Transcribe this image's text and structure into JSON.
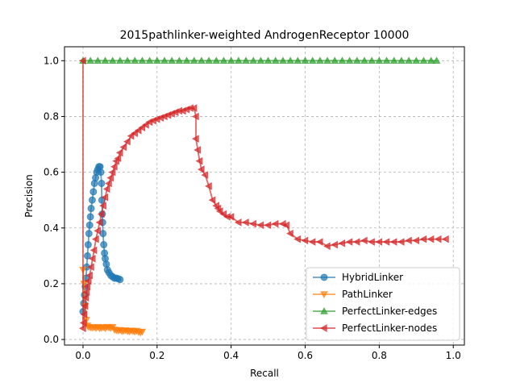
{
  "chart_data": {
    "type": "line",
    "title": "2015pathlinker-weighted AndrogenReceptor 10000",
    "xlabel": "Recall",
    "ylabel": "Precision",
    "xlim": [
      -0.05,
      1.03
    ],
    "ylim": [
      -0.02,
      1.05
    ],
    "xticks": [
      0.0,
      0.2,
      0.4,
      0.6,
      0.8,
      1.0
    ],
    "yticks": [
      0.0,
      0.2,
      0.4,
      0.6,
      0.8,
      1.0
    ],
    "grid": true,
    "legend_position": "lower-right",
    "series": [
      {
        "name": "HybridLinker",
        "color": "#1f77b4",
        "marker": "circle",
        "x": [
          0.0,
          0.002,
          0.004,
          0.006,
          0.008,
          0.01,
          0.012,
          0.014,
          0.016,
          0.018,
          0.02,
          0.022,
          0.025,
          0.028,
          0.031,
          0.034,
          0.037,
          0.04,
          0.043,
          0.046,
          0.048,
          0.05,
          0.051,
          0.052,
          0.053,
          0.054,
          0.056,
          0.058,
          0.06,
          0.063,
          0.066,
          0.07,
          0.075,
          0.08,
          0.085,
          0.09,
          0.095,
          0.1
        ],
        "y": [
          0.1,
          0.13,
          0.16,
          0.19,
          0.22,
          0.26,
          0.3,
          0.34,
          0.38,
          0.41,
          0.44,
          0.47,
          0.5,
          0.53,
          0.56,
          0.58,
          0.6,
          0.61,
          0.62,
          0.62,
          0.6,
          0.56,
          0.5,
          0.45,
          0.42,
          0.38,
          0.34,
          0.31,
          0.29,
          0.27,
          0.25,
          0.24,
          0.23,
          0.225,
          0.22,
          0.22,
          0.218,
          0.215
        ]
      },
      {
        "name": "PathLinker",
        "color": "#ff7f0e",
        "marker": "triangle-down",
        "x": [
          0.0,
          0.003,
          0.006,
          0.009,
          0.012,
          0.015,
          0.02,
          0.025,
          0.03,
          0.035,
          0.04,
          0.045,
          0.05,
          0.055,
          0.06,
          0.065,
          0.07,
          0.075,
          0.08,
          0.085,
          0.09,
          0.095,
          0.1,
          0.105,
          0.11,
          0.115,
          0.12,
          0.125,
          0.13,
          0.135,
          0.14,
          0.145,
          0.15,
          0.155,
          0.16
        ],
        "y": [
          0.25,
          0.2,
          0.12,
          0.07,
          0.05,
          0.045,
          0.043,
          0.042,
          0.044,
          0.041,
          0.045,
          0.04,
          0.042,
          0.044,
          0.04,
          0.045,
          0.043,
          0.041,
          0.045,
          0.035,
          0.033,
          0.032,
          0.034,
          0.03,
          0.031,
          0.033,
          0.03,
          0.029,
          0.032,
          0.03,
          0.028,
          0.031,
          0.027,
          0.025,
          0.028
        ]
      },
      {
        "name": "PerfectLinker-edges",
        "color": "#2ca02c",
        "marker": "triangle-up",
        "x": [
          0.0,
          0.02,
          0.04,
          0.06,
          0.08,
          0.1,
          0.12,
          0.14,
          0.16,
          0.18,
          0.2,
          0.22,
          0.24,
          0.26,
          0.28,
          0.3,
          0.32,
          0.34,
          0.36,
          0.38,
          0.4,
          0.42,
          0.44,
          0.46,
          0.48,
          0.5,
          0.52,
          0.54,
          0.56,
          0.58,
          0.6,
          0.62,
          0.64,
          0.66,
          0.68,
          0.7,
          0.72,
          0.74,
          0.76,
          0.78,
          0.8,
          0.82,
          0.84,
          0.86,
          0.88,
          0.9,
          0.92,
          0.94,
          0.955
        ],
        "y": [
          1.0,
          1.0,
          1.0,
          1.0,
          1.0,
          1.0,
          1.0,
          1.0,
          1.0,
          1.0,
          1.0,
          1.0,
          1.0,
          1.0,
          1.0,
          1.0,
          1.0,
          1.0,
          1.0,
          1.0,
          1.0,
          1.0,
          1.0,
          1.0,
          1.0,
          1.0,
          1.0,
          1.0,
          1.0,
          1.0,
          1.0,
          1.0,
          1.0,
          1.0,
          1.0,
          1.0,
          1.0,
          1.0,
          1.0,
          1.0,
          1.0,
          1.0,
          1.0,
          1.0,
          1.0,
          1.0,
          1.0,
          1.0,
          1.0
        ]
      },
      {
        "name": "PerfectLinker-nodes",
        "color": "#d62728",
        "marker": "triangle-left",
        "x": [
          0.0,
          0.0,
          0.002,
          0.004,
          0.006,
          0.008,
          0.01,
          0.012,
          0.015,
          0.018,
          0.022,
          0.026,
          0.03,
          0.035,
          0.04,
          0.045,
          0.05,
          0.055,
          0.06,
          0.065,
          0.07,
          0.075,
          0.08,
          0.085,
          0.09,
          0.095,
          0.1,
          0.11,
          0.12,
          0.13,
          0.14,
          0.15,
          0.16,
          0.17,
          0.18,
          0.19,
          0.2,
          0.21,
          0.22,
          0.23,
          0.24,
          0.25,
          0.26,
          0.27,
          0.28,
          0.29,
          0.3,
          0.305,
          0.305,
          0.31,
          0.315,
          0.32,
          0.33,
          0.34,
          0.35,
          0.36,
          0.365,
          0.37,
          0.38,
          0.39,
          0.4,
          0.42,
          0.44,
          0.46,
          0.48,
          0.5,
          0.52,
          0.54,
          0.55,
          0.56,
          0.58,
          0.6,
          0.62,
          0.64,
          0.66,
          0.68,
          0.7,
          0.72,
          0.74,
          0.76,
          0.78,
          0.8,
          0.82,
          0.84,
          0.86,
          0.88,
          0.9,
          0.92,
          0.94,
          0.96,
          0.98
        ],
        "y": [
          1.0,
          0.04,
          0.06,
          0.09,
          0.12,
          0.15,
          0.17,
          0.19,
          0.21,
          0.23,
          0.26,
          0.29,
          0.32,
          0.36,
          0.39,
          0.42,
          0.45,
          0.48,
          0.51,
          0.54,
          0.56,
          0.58,
          0.6,
          0.62,
          0.64,
          0.65,
          0.67,
          0.69,
          0.71,
          0.73,
          0.74,
          0.75,
          0.76,
          0.77,
          0.78,
          0.785,
          0.79,
          0.795,
          0.8,
          0.805,
          0.81,
          0.815,
          0.82,
          0.82,
          0.825,
          0.83,
          0.83,
          0.8,
          0.72,
          0.68,
          0.64,
          0.61,
          0.59,
          0.55,
          0.5,
          0.48,
          0.47,
          0.46,
          0.45,
          0.44,
          0.44,
          0.42,
          0.42,
          0.415,
          0.41,
          0.41,
          0.415,
          0.415,
          0.41,
          0.38,
          0.36,
          0.355,
          0.35,
          0.35,
          0.335,
          0.34,
          0.345,
          0.35,
          0.35,
          0.355,
          0.35,
          0.35,
          0.35,
          0.35,
          0.35,
          0.355,
          0.355,
          0.36,
          0.36,
          0.36,
          0.36
        ]
      }
    ]
  }
}
